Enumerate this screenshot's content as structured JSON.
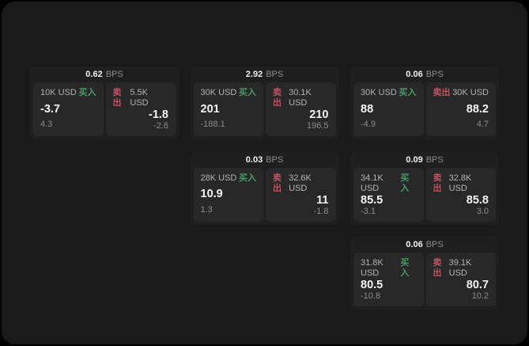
{
  "labels": {
    "bps_unit": "BPS",
    "buy": "买入",
    "sell": "卖出"
  },
  "colors": {
    "page_bg": "#000000",
    "surface_bg": "#1a1a1a",
    "card_bg": "#1f1f1f",
    "panel_bg": "#282828",
    "buy_green": "#4a9b67",
    "sell_red": "#c05364",
    "value_white": "#f5f5f5",
    "muted_gray": "#8d8d8d"
  },
  "cards": [
    {
      "bps": "0.62",
      "col": 1,
      "row": 1,
      "buy": {
        "amount": "10K USD",
        "value": "-3.7",
        "sub": "4.3"
      },
      "sell": {
        "amount": "5.5K USD",
        "value": "-1.8",
        "sub": "-2.6"
      }
    },
    {
      "bps": "2.92",
      "col": 2,
      "row": 1,
      "buy": {
        "amount": "30K USD",
        "value": "201",
        "sub": "-188.1"
      },
      "sell": {
        "amount": "30.1K USD",
        "value": "210",
        "sub": "196.5"
      }
    },
    {
      "bps": "0.06",
      "col": 3,
      "row": 1,
      "buy": {
        "amount": "30K USD",
        "value": "88",
        "sub": "-4.9"
      },
      "sell": {
        "amount": "30K USD",
        "value": "88.2",
        "sub": "4.7"
      }
    },
    {
      "bps": "0.03",
      "col": 2,
      "row": 2,
      "buy": {
        "amount": "28K USD",
        "value": "10.9",
        "sub": "1.3"
      },
      "sell": {
        "amount": "32.6K USD",
        "value": "11",
        "sub": "-1.8"
      }
    },
    {
      "bps": "0.09",
      "col": 3,
      "row": 2,
      "buy": {
        "amount": "34.1K USD",
        "value": "85.5",
        "sub": "-3.1"
      },
      "sell": {
        "amount": "32.8K USD",
        "value": "85.8",
        "sub": "3.0"
      }
    },
    {
      "bps": "0.06",
      "col": 3,
      "row": 3,
      "buy": {
        "amount": "31.8K USD",
        "value": "80.5",
        "sub": "-10.8"
      },
      "sell": {
        "amount": "39.1K USD",
        "value": "80.7",
        "sub": "10.2"
      }
    }
  ]
}
